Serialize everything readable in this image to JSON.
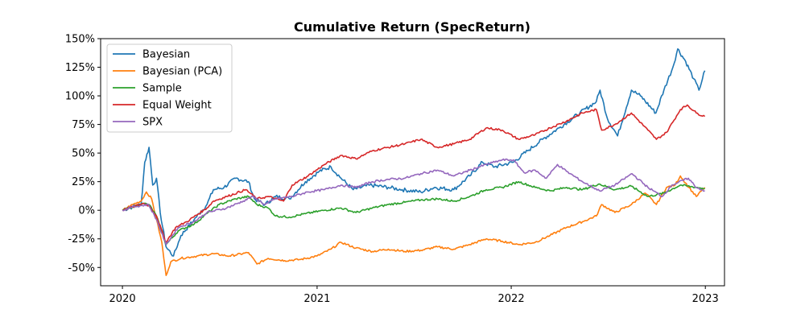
{
  "chart_data": {
    "type": "line",
    "title": "Cumulative Return (SpecReturn)",
    "xlabel": "",
    "ylabel": "",
    "x_ticks": [
      "2020",
      "2021",
      "2022",
      "2023"
    ],
    "y_ticks": [
      "-50%",
      "-25%",
      "0%",
      "25%",
      "50%",
      "75%",
      "100%",
      "125%",
      "150%"
    ],
    "ylim": [
      -0.66,
      1.5
    ],
    "xlim": [
      "2019-11-21",
      "2023-02-06"
    ],
    "grid": false,
    "legend_position": "upper left",
    "series": [
      {
        "name": "Bayesian",
        "color": "#1f77b4",
        "points": [
          [
            "2020-01-01",
            0.0
          ],
          [
            "2020-01-20",
            0.03
          ],
          [
            "2020-02-05",
            0.05
          ],
          [
            "2020-02-12",
            0.42
          ],
          [
            "2020-02-20",
            0.55
          ],
          [
            "2020-02-27",
            0.22
          ],
          [
            "2020-03-05",
            0.28
          ],
          [
            "2020-03-12",
            -0.02
          ],
          [
            "2020-03-23",
            -0.32
          ],
          [
            "2020-04-06",
            -0.4
          ],
          [
            "2020-04-20",
            -0.22
          ],
          [
            "2020-05-15",
            -0.08
          ],
          [
            "2020-06-08",
            0.05
          ],
          [
            "2020-06-20",
            0.18
          ],
          [
            "2020-07-10",
            0.2
          ],
          [
            "2020-08-01",
            0.28
          ],
          [
            "2020-08-25",
            0.25
          ],
          [
            "2020-09-05",
            0.1
          ],
          [
            "2020-09-25",
            0.05
          ],
          [
            "2020-10-15",
            0.12
          ],
          [
            "2020-11-10",
            0.1
          ],
          [
            "2020-12-10",
            0.25
          ],
          [
            "2021-01-05",
            0.34
          ],
          [
            "2021-01-27",
            0.38
          ],
          [
            "2021-02-15",
            0.28
          ],
          [
            "2021-03-10",
            0.18
          ],
          [
            "2021-04-10",
            0.22
          ],
          [
            "2021-05-15",
            0.2
          ],
          [
            "2021-06-10",
            0.18
          ],
          [
            "2021-07-15",
            0.16
          ],
          [
            "2021-08-10",
            0.2
          ],
          [
            "2021-09-15",
            0.18
          ],
          [
            "2021-10-15",
            0.3
          ],
          [
            "2021-11-08",
            0.42
          ],
          [
            "2021-12-01",
            0.38
          ],
          [
            "2022-01-05",
            0.42
          ],
          [
            "2022-02-01",
            0.52
          ],
          [
            "2022-03-01",
            0.62
          ],
          [
            "2022-04-01",
            0.72
          ],
          [
            "2022-05-10",
            0.85
          ],
          [
            "2022-06-10",
            0.95
          ],
          [
            "2022-06-17",
            1.05
          ],
          [
            "2022-07-01",
            0.8
          ],
          [
            "2022-07-20",
            0.65
          ],
          [
            "2022-08-15",
            1.05
          ],
          [
            "2022-09-01",
            1.0
          ],
          [
            "2022-09-30",
            0.85
          ],
          [
            "2022-10-15",
            1.05
          ],
          [
            "2022-11-01",
            1.25
          ],
          [
            "2022-11-10",
            1.41
          ],
          [
            "2022-11-25",
            1.3
          ],
          [
            "2022-12-10",
            1.15
          ],
          [
            "2022-12-20",
            1.05
          ],
          [
            "2022-12-31",
            1.22
          ]
        ]
      },
      {
        "name": "Bayesian (PCA)",
        "color": "#ff7f0e",
        "points": [
          [
            "2020-01-01",
            0.0
          ],
          [
            "2020-01-20",
            0.05
          ],
          [
            "2020-02-05",
            0.08
          ],
          [
            "2020-02-15",
            0.16
          ],
          [
            "2020-02-25",
            0.1
          ],
          [
            "2020-03-05",
            -0.08
          ],
          [
            "2020-03-15",
            -0.28
          ],
          [
            "2020-03-23",
            -0.57
          ],
          [
            "2020-04-01",
            -0.45
          ],
          [
            "2020-04-20",
            -0.42
          ],
          [
            "2020-05-20",
            -0.4
          ],
          [
            "2020-06-20",
            -0.38
          ],
          [
            "2020-07-20",
            -0.4
          ],
          [
            "2020-08-25",
            -0.37
          ],
          [
            "2020-09-10",
            -0.47
          ],
          [
            "2020-10-01",
            -0.42
          ],
          [
            "2020-11-01",
            -0.44
          ],
          [
            "2020-12-01",
            -0.43
          ],
          [
            "2021-01-01",
            -0.4
          ],
          [
            "2021-01-27",
            -0.34
          ],
          [
            "2021-02-15",
            -0.28
          ],
          [
            "2021-03-15",
            -0.33
          ],
          [
            "2021-04-15",
            -0.36
          ],
          [
            "2021-05-15",
            -0.34
          ],
          [
            "2021-06-15",
            -0.36
          ],
          [
            "2021-07-15",
            -0.35
          ],
          [
            "2021-08-15",
            -0.32
          ],
          [
            "2021-09-15",
            -0.34
          ],
          [
            "2021-10-15",
            -0.3
          ],
          [
            "2021-11-15",
            -0.25
          ],
          [
            "2021-12-15",
            -0.27
          ],
          [
            "2022-01-15",
            -0.3
          ],
          [
            "2022-02-15",
            -0.28
          ],
          [
            "2022-03-15",
            -0.22
          ],
          [
            "2022-04-15",
            -0.15
          ],
          [
            "2022-05-15",
            -0.1
          ],
          [
            "2022-06-10",
            -0.05
          ],
          [
            "2022-06-20",
            0.05
          ],
          [
            "2022-07-15",
            -0.02
          ],
          [
            "2022-08-15",
            0.05
          ],
          [
            "2022-09-10",
            0.15
          ],
          [
            "2022-10-01",
            0.05
          ],
          [
            "2022-10-20",
            0.2
          ],
          [
            "2022-11-05",
            0.22
          ],
          [
            "2022-11-15",
            0.3
          ],
          [
            "2022-12-01",
            0.2
          ],
          [
            "2022-12-15",
            0.12
          ],
          [
            "2022-12-31",
            0.2
          ]
        ]
      },
      {
        "name": "Sample",
        "color": "#2ca02c",
        "points": [
          [
            "2020-01-01",
            0.0
          ],
          [
            "2020-01-20",
            0.03
          ],
          [
            "2020-02-10",
            0.06
          ],
          [
            "2020-02-20",
            0.05
          ],
          [
            "2020-03-05",
            -0.05
          ],
          [
            "2020-03-23",
            -0.3
          ],
          [
            "2020-04-15",
            -0.18
          ],
          [
            "2020-05-15",
            -0.12
          ],
          [
            "2020-06-10",
            -0.02
          ],
          [
            "2020-07-01",
            0.05
          ],
          [
            "2020-08-01",
            0.1
          ],
          [
            "2020-08-25",
            0.12
          ],
          [
            "2020-09-10",
            0.05
          ],
          [
            "2020-10-01",
            0.02
          ],
          [
            "2020-10-15",
            -0.05
          ],
          [
            "2020-11-10",
            -0.06
          ],
          [
            "2020-12-10",
            -0.03
          ],
          [
            "2021-01-15",
            0.0
          ],
          [
            "2021-02-15",
            0.02
          ],
          [
            "2021-03-15",
            -0.02
          ],
          [
            "2021-04-15",
            0.02
          ],
          [
            "2021-05-15",
            0.05
          ],
          [
            "2021-06-15",
            0.07
          ],
          [
            "2021-07-15",
            0.09
          ],
          [
            "2021-08-15",
            0.1
          ],
          [
            "2021-09-15",
            0.08
          ],
          [
            "2021-10-15",
            0.12
          ],
          [
            "2021-11-15",
            0.18
          ],
          [
            "2021-12-15",
            0.2
          ],
          [
            "2022-01-15",
            0.25
          ],
          [
            "2022-02-15",
            0.2
          ],
          [
            "2022-03-15",
            0.17
          ],
          [
            "2022-04-15",
            0.2
          ],
          [
            "2022-05-15",
            0.18
          ],
          [
            "2022-06-15",
            0.23
          ],
          [
            "2022-07-15",
            0.18
          ],
          [
            "2022-08-15",
            0.21
          ],
          [
            "2022-09-15",
            0.12
          ],
          [
            "2022-10-15",
            0.15
          ],
          [
            "2022-11-15",
            0.22
          ],
          [
            "2022-12-15",
            0.2
          ],
          [
            "2022-12-31",
            0.19
          ]
        ]
      },
      {
        "name": "Equal Weight",
        "color": "#d62728",
        "points": [
          [
            "2020-01-01",
            0.0
          ],
          [
            "2020-01-20",
            0.03
          ],
          [
            "2020-02-10",
            0.06
          ],
          [
            "2020-02-20",
            0.04
          ],
          [
            "2020-03-05",
            -0.05
          ],
          [
            "2020-03-23",
            -0.28
          ],
          [
            "2020-04-10",
            -0.15
          ],
          [
            "2020-05-01",
            -0.1
          ],
          [
            "2020-06-08",
            0.02
          ],
          [
            "2020-06-20",
            0.08
          ],
          [
            "2020-07-15",
            0.12
          ],
          [
            "2020-08-20",
            0.18
          ],
          [
            "2020-09-10",
            0.1
          ],
          [
            "2020-10-01",
            0.12
          ],
          [
            "2020-10-30",
            0.08
          ],
          [
            "2020-11-15",
            0.22
          ],
          [
            "2020-12-15",
            0.3
          ],
          [
            "2021-01-15",
            0.4
          ],
          [
            "2021-02-15",
            0.48
          ],
          [
            "2021-03-15",
            0.45
          ],
          [
            "2021-04-15",
            0.52
          ],
          [
            "2021-05-15",
            0.55
          ],
          [
            "2021-06-15",
            0.58
          ],
          [
            "2021-07-15",
            0.62
          ],
          [
            "2021-08-15",
            0.55
          ],
          [
            "2021-09-15",
            0.58
          ],
          [
            "2021-10-15",
            0.62
          ],
          [
            "2021-11-15",
            0.72
          ],
          [
            "2021-12-15",
            0.7
          ],
          [
            "2022-01-15",
            0.62
          ],
          [
            "2022-02-15",
            0.66
          ],
          [
            "2022-03-15",
            0.72
          ],
          [
            "2022-04-15",
            0.78
          ],
          [
            "2022-05-15",
            0.85
          ],
          [
            "2022-06-10",
            0.88
          ],
          [
            "2022-06-20",
            0.7
          ],
          [
            "2022-07-15",
            0.75
          ],
          [
            "2022-08-15",
            0.85
          ],
          [
            "2022-09-15",
            0.7
          ],
          [
            "2022-10-01",
            0.62
          ],
          [
            "2022-10-20",
            0.68
          ],
          [
            "2022-11-15",
            0.88
          ],
          [
            "2022-11-28",
            0.92
          ],
          [
            "2022-12-15",
            0.85
          ],
          [
            "2022-12-31",
            0.82
          ]
        ]
      },
      {
        "name": "SPX",
        "color": "#9467bd",
        "points": [
          [
            "2020-01-01",
            0.0
          ],
          [
            "2020-01-20",
            0.03
          ],
          [
            "2020-02-19",
            0.05
          ],
          [
            "2020-03-05",
            -0.08
          ],
          [
            "2020-03-23",
            -0.3
          ],
          [
            "2020-04-15",
            -0.15
          ],
          [
            "2020-05-15",
            -0.1
          ],
          [
            "2020-06-08",
            -0.02
          ],
          [
            "2020-07-15",
            0.02
          ],
          [
            "2020-08-15",
            0.08
          ],
          [
            "2020-09-02",
            0.12
          ],
          [
            "2020-09-25",
            0.05
          ],
          [
            "2020-10-15",
            0.1
          ],
          [
            "2020-11-15",
            0.12
          ],
          [
            "2020-12-15",
            0.16
          ],
          [
            "2021-01-15",
            0.18
          ],
          [
            "2021-02-15",
            0.22
          ],
          [
            "2021-03-15",
            0.2
          ],
          [
            "2021-04-15",
            0.25
          ],
          [
            "2021-05-15",
            0.27
          ],
          [
            "2021-06-15",
            0.28
          ],
          [
            "2021-07-15",
            0.32
          ],
          [
            "2021-08-15",
            0.35
          ],
          [
            "2021-09-15",
            0.3
          ],
          [
            "2021-10-15",
            0.35
          ],
          [
            "2021-11-15",
            0.4
          ],
          [
            "2021-12-15",
            0.44
          ],
          [
            "2022-01-05",
            0.44
          ],
          [
            "2022-01-25",
            0.33
          ],
          [
            "2022-02-15",
            0.35
          ],
          [
            "2022-03-08",
            0.28
          ],
          [
            "2022-03-29",
            0.4
          ],
          [
            "2022-04-15",
            0.34
          ],
          [
            "2022-05-15",
            0.25
          ],
          [
            "2022-06-16",
            0.17
          ],
          [
            "2022-07-15",
            0.22
          ],
          [
            "2022-08-16",
            0.32
          ],
          [
            "2022-09-15",
            0.2
          ],
          [
            "2022-10-12",
            0.12
          ],
          [
            "2022-10-30",
            0.22
          ],
          [
            "2022-11-30",
            0.28
          ],
          [
            "2022-12-15",
            0.2
          ],
          [
            "2022-12-31",
            0.17
          ]
        ]
      }
    ]
  }
}
